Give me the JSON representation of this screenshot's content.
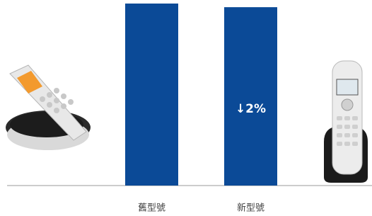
{
  "chart_data": {
    "type": "bar",
    "categories": [
      "舊型號",
      "新型號"
    ],
    "values": [
      100,
      98
    ],
    "color": "#0b4a97",
    "ylim": [
      0,
      100
    ],
    "annotation": "↓2%"
  }
}
